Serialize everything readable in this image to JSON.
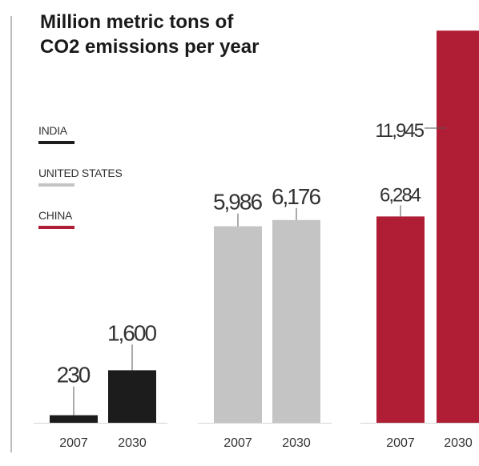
{
  "chart_data": {
    "type": "bar",
    "title": "Million metric tons of CO2 emissions per year",
    "title_lines": [
      "Million metric tons of",
      "CO2 emissions per year"
    ],
    "xlabel": "",
    "ylabel": "",
    "categories": [
      "2007",
      "2030"
    ],
    "series": [
      {
        "name": "INDIA",
        "color": "#1c1c1c",
        "values": [
          230,
          1600
        ],
        "labels": [
          "230",
          "1,600"
        ]
      },
      {
        "name": "UNITED STATES",
        "color": "#c4c4c4",
        "values": [
          5986,
          6176
        ],
        "labels": [
          "5,986",
          "6,176"
        ]
      },
      {
        "name": "CHINA",
        "color": "#b01e35",
        "values": [
          6284,
          11945
        ],
        "labels": [
          "6,284",
          "11,945"
        ]
      }
    ],
    "legend_position": "top-left",
    "grid": false
  }
}
